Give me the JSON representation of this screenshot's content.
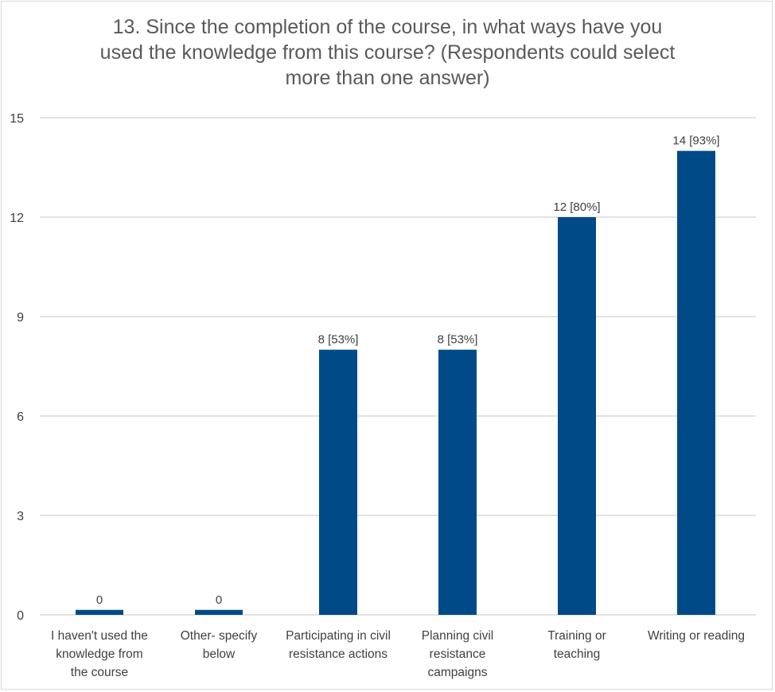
{
  "chart_data": {
    "type": "bar",
    "title_lines": [
      "13. Since the completion of the course, in what ways have you",
      "used the knowledge from this course? (Respondents could select",
      "more than one answer)"
    ],
    "categories": [
      [
        "I haven't used the",
        "knowledge from",
        "the course"
      ],
      [
        "Other- specify",
        "below"
      ],
      [
        "Participating in civil",
        "resistance actions"
      ],
      [
        "Planning civil",
        "resistance",
        "campaigns"
      ],
      [
        "Training or",
        "teaching"
      ],
      [
        "Writing or reading"
      ]
    ],
    "values": [
      0,
      0,
      8,
      8,
      12,
      14
    ],
    "data_labels": [
      "0",
      "0",
      "8  [53%]",
      "8 [53%]",
      "12 [80%]",
      "14 [93%]"
    ],
    "yticks": [
      0,
      3,
      6,
      9,
      12,
      15
    ],
    "ylim": [
      0,
      15
    ],
    "xlabel": "",
    "ylabel": "",
    "grid": true,
    "bar_color": "#004a87"
  }
}
